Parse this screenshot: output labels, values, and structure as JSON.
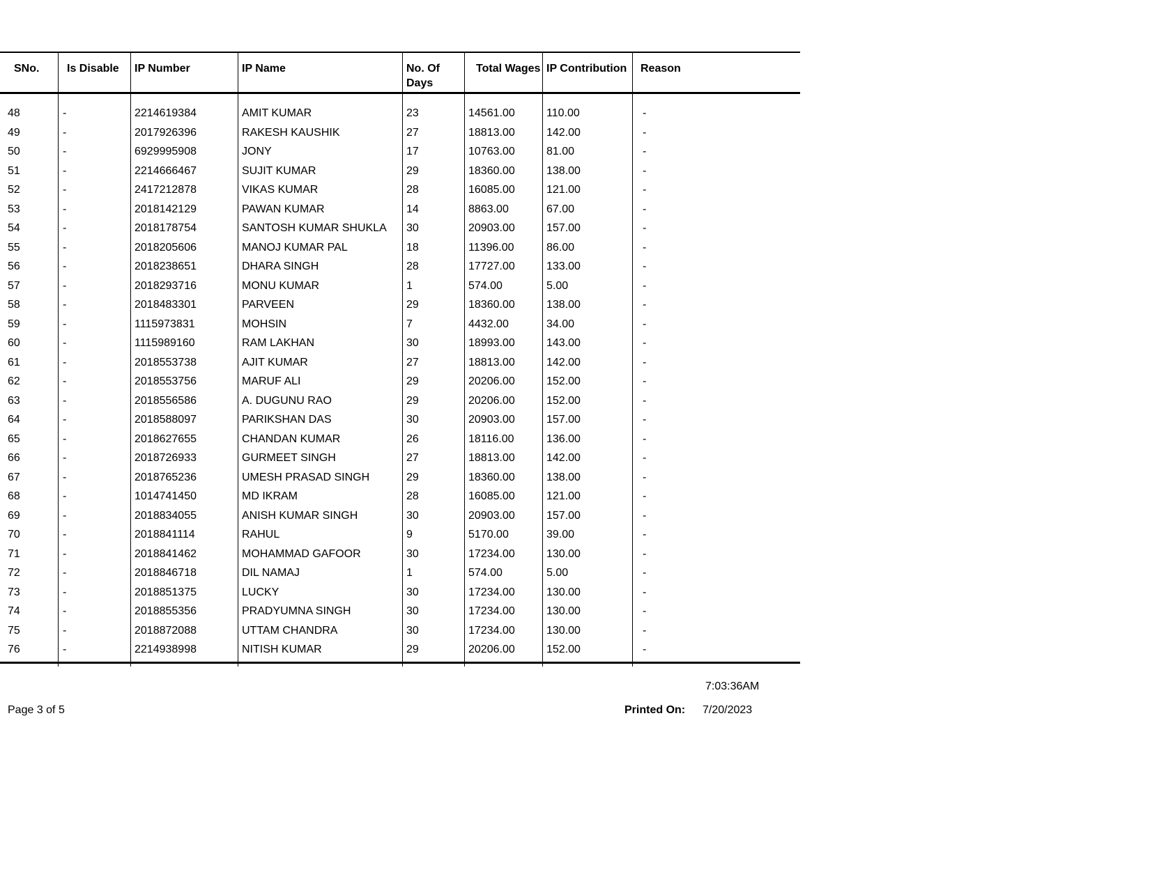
{
  "headers": [
    "SNo.",
    "Is Disable",
    "IP Number",
    "IP Name",
    "No. Of Days",
    "Total Wages",
    "IP Contribution",
    "Reason"
  ],
  "rows": [
    [
      "48",
      "-",
      "2214619384",
      "AMIT KUMAR",
      "23",
      "14561.00",
      "110.00",
      "-"
    ],
    [
      "49",
      "-",
      "2017926396",
      "RAKESH KAUSHIK",
      "27",
      "18813.00",
      "142.00",
      "-"
    ],
    [
      "50",
      "-",
      "6929995908",
      "JONY",
      "17",
      "10763.00",
      "81.00",
      "-"
    ],
    [
      "51",
      "-",
      "2214666467",
      "SUJIT KUMAR",
      "29",
      "18360.00",
      "138.00",
      "-"
    ],
    [
      "52",
      "-",
      "2417212878",
      "VIKAS KUMAR",
      "28",
      "16085.00",
      "121.00",
      "-"
    ],
    [
      "53",
      "-",
      "2018142129",
      "PAWAN KUMAR",
      "14",
      "8863.00",
      "67.00",
      "-"
    ],
    [
      "54",
      "-",
      "2018178754",
      "SANTOSH KUMAR SHUKLA",
      "30",
      "20903.00",
      "157.00",
      "-"
    ],
    [
      "55",
      "-",
      "2018205606",
      "MANOJ KUMAR PAL",
      "18",
      "11396.00",
      "86.00",
      "-"
    ],
    [
      "56",
      "-",
      "2018238651",
      "DHARA SINGH",
      "28",
      "17727.00",
      "133.00",
      "-"
    ],
    [
      "57",
      "-",
      "2018293716",
      "MONU KUMAR",
      "1",
      "574.00",
      "5.00",
      "-"
    ],
    [
      "58",
      "-",
      "2018483301",
      "PARVEEN",
      "29",
      "18360.00",
      "138.00",
      "-"
    ],
    [
      "59",
      "-",
      "1115973831",
      "MOHSIN",
      "7",
      "4432.00",
      "34.00",
      "-"
    ],
    [
      "60",
      "-",
      "1115989160",
      "RAM LAKHAN",
      "30",
      "18993.00",
      "143.00",
      "-"
    ],
    [
      "61",
      "-",
      "2018553738",
      "AJIT KUMAR",
      "27",
      "18813.00",
      "142.00",
      "-"
    ],
    [
      "62",
      "-",
      "2018553756",
      "MARUF ALI",
      "29",
      "20206.00",
      "152.00",
      "-"
    ],
    [
      "63",
      "-",
      "2018556586",
      "A. DUGUNU RAO",
      "29",
      "20206.00",
      "152.00",
      "-"
    ],
    [
      "64",
      "-",
      "2018588097",
      "PARIKSHAN DAS",
      "30",
      "20903.00",
      "157.00",
      "-"
    ],
    [
      "65",
      "-",
      "2018627655",
      "CHANDAN KUMAR",
      "26",
      "18116.00",
      "136.00",
      "-"
    ],
    [
      "66",
      "-",
      "2018726933",
      "GURMEET SINGH",
      "27",
      "18813.00",
      "142.00",
      "-"
    ],
    [
      "67",
      "-",
      "2018765236",
      "UMESH PRASAD SINGH",
      "29",
      "18360.00",
      "138.00",
      "-"
    ],
    [
      "68",
      "-",
      "1014741450",
      "MD IKRAM",
      "28",
      "16085.00",
      "121.00",
      "-"
    ],
    [
      "69",
      "-",
      "2018834055",
      "ANISH KUMAR SINGH",
      "30",
      "20903.00",
      "157.00",
      "-"
    ],
    [
      "70",
      "-",
      "2018841114",
      "RAHUL",
      "9",
      "5170.00",
      "39.00",
      "-"
    ],
    [
      "71",
      "-",
      "2018841462",
      "MOHAMMAD GAFOOR",
      "30",
      "17234.00",
      "130.00",
      "-"
    ],
    [
      "72",
      "-",
      "2018846718",
      "DIL NAMAJ",
      "1",
      "574.00",
      "5.00",
      "-"
    ],
    [
      "73",
      "-",
      "2018851375",
      "LUCKY",
      "30",
      "17234.00",
      "130.00",
      "-"
    ],
    [
      "74",
      "-",
      "2018855356",
      "PRADYUMNA SINGH",
      "30",
      "17234.00",
      "130.00",
      "-"
    ],
    [
      "75",
      "-",
      "2018872088",
      "UTTAM CHANDRA",
      "30",
      "17234.00",
      "130.00",
      "-"
    ],
    [
      "76",
      "-",
      "2214938998",
      "NITISH KUMAR",
      "29",
      "20206.00",
      "152.00",
      "-"
    ]
  ],
  "footer": {
    "time": "7:03:36AM",
    "page": "Page 3 of 5",
    "printed_label": "Printed On:",
    "printed_date": "7/20/2023"
  }
}
